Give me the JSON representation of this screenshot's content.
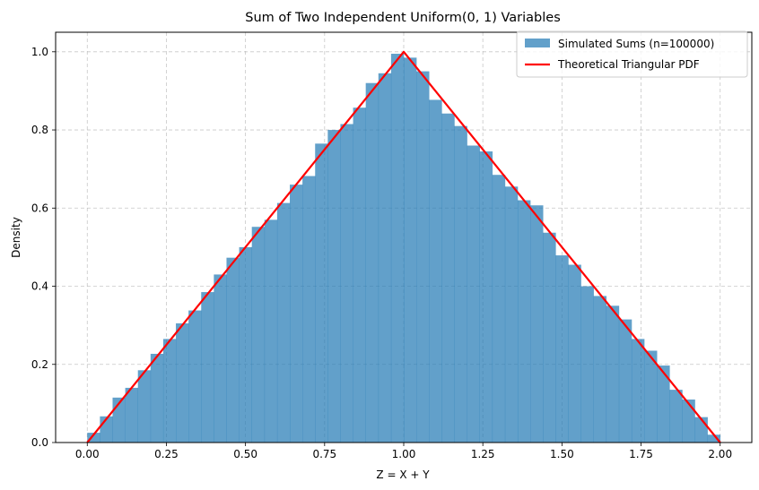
{
  "chart_data": {
    "type": "bar",
    "title": "Sum of Two Independent Uniform(0, 1) Variables",
    "xlabel": "Z = X + Y",
    "ylabel": "Density",
    "xlim": [
      -0.1,
      2.1
    ],
    "ylim": [
      0,
      1.05
    ],
    "xticks": [
      "0.00",
      "0.25",
      "0.50",
      "0.75",
      "1.00",
      "1.25",
      "1.50",
      "1.75",
      "2.00"
    ],
    "yticks": [
      "0.0",
      "0.2",
      "0.4",
      "0.6",
      "0.8",
      "1.0"
    ],
    "grid": true,
    "legend_position": "top-right",
    "series": [
      {
        "name": "Simulated Sums (n=100000)",
        "kind": "histogram",
        "color": "#1f77b4",
        "opacity": 0.7,
        "bin_edges": [
          0.0,
          0.04,
          0.08,
          0.12,
          0.16,
          0.2,
          0.24,
          0.28,
          0.32,
          0.36,
          0.4,
          0.44,
          0.48,
          0.52,
          0.56,
          0.6,
          0.64,
          0.68,
          0.72,
          0.76,
          0.8,
          0.84,
          0.88,
          0.92,
          0.96,
          1.0,
          1.04,
          1.08,
          1.12,
          1.16,
          1.2,
          1.24,
          1.28,
          1.32,
          1.36,
          1.4,
          1.44,
          1.48,
          1.52,
          1.56,
          1.6,
          1.64,
          1.68,
          1.72,
          1.76,
          1.8,
          1.84,
          1.88,
          1.92,
          1.96,
          2.0
        ],
        "values": [
          0.025,
          0.067,
          0.115,
          0.14,
          0.185,
          0.227,
          0.265,
          0.305,
          0.338,
          0.385,
          0.43,
          0.473,
          0.5,
          0.552,
          0.57,
          0.613,
          0.66,
          0.682,
          0.765,
          0.8,
          0.815,
          0.857,
          0.92,
          0.945,
          0.995,
          0.985,
          0.95,
          0.877,
          0.842,
          0.81,
          0.76,
          0.745,
          0.685,
          0.655,
          0.62,
          0.607,
          0.537,
          0.479,
          0.455,
          0.4,
          0.375,
          0.35,
          0.315,
          0.265,
          0.235,
          0.197,
          0.135,
          0.11,
          0.065,
          0.02
        ]
      },
      {
        "name": "Theoretical Triangular PDF",
        "kind": "line",
        "color": "#ff0000",
        "x": [
          0,
          1,
          2
        ],
        "y": [
          0,
          1,
          0
        ]
      }
    ]
  }
}
